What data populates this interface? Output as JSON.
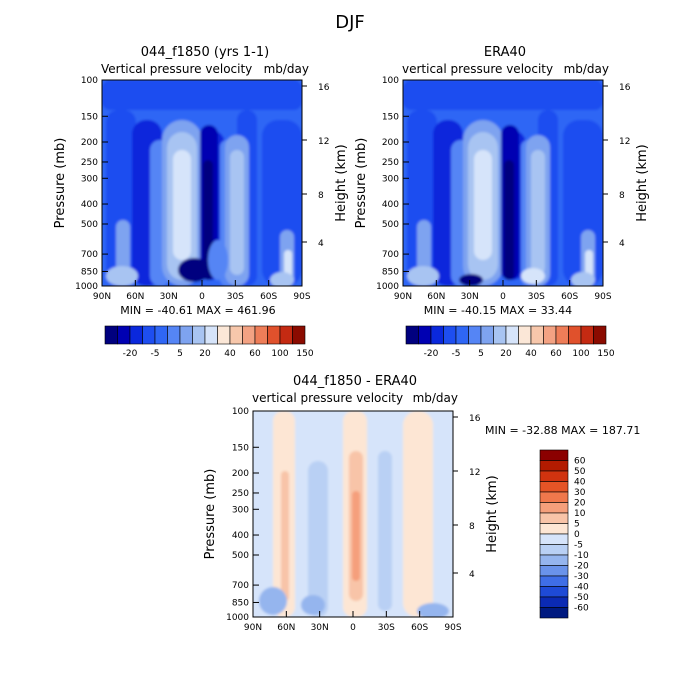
{
  "figure": {
    "title": "DJF"
  },
  "chart_data": [
    {
      "type": "heatmap",
      "title": "044_f1850 (yrs 1-1)",
      "subtitle_left": "Vertical pressure velocity",
      "subtitle_right": "mb/day",
      "ylabel": "Pressure (mb)",
      "ylabel_right": "Height (km)",
      "x_ticks": [
        "90N",
        "60N",
        "30N",
        "0",
        "30S",
        "60S",
        "90S"
      ],
      "y_ticks": [
        "100",
        "150",
        "200",
        "250",
        "300",
        "400",
        "500",
        "700",
        "850",
        "1000"
      ],
      "y_ticks_right": [
        "16",
        "12",
        "8",
        "4"
      ],
      "y_log_scale": true,
      "ylim": [
        1000,
        100
      ],
      "stats": "MIN = -40.61   MAX = 461.96",
      "colorbar": {
        "orientation": "horizontal",
        "labels": [
          "-20",
          "-5",
          "5",
          "20",
          "40",
          "60",
          "100",
          "150"
        ]
      }
    },
    {
      "type": "heatmap",
      "title": "ERA40",
      "subtitle_left": "vertical pressure velocity",
      "subtitle_right": "mb/day",
      "ylabel": "Pressure (mb)",
      "ylabel_right": "Height (km)",
      "x_ticks": [
        "90N",
        "60N",
        "30N",
        "0",
        "30S",
        "60S",
        "90S"
      ],
      "y_ticks": [
        "100",
        "150",
        "200",
        "250",
        "300",
        "400",
        "500",
        "700",
        "850",
        "1000"
      ],
      "y_ticks_right": [
        "16",
        "12",
        "8",
        "4"
      ],
      "y_log_scale": true,
      "ylim": [
        1000,
        100
      ],
      "stats": "MIN = -40.15   MAX = 33.44",
      "colorbar": {
        "orientation": "horizontal",
        "labels": [
          "-20",
          "-5",
          "5",
          "20",
          "40",
          "60",
          "100",
          "150"
        ]
      }
    },
    {
      "type": "heatmap",
      "title": "044_f1850 - ERA40",
      "subtitle_left": "vertical pressure velocity",
      "subtitle_right": "mb/day",
      "ylabel": "Pressure (mb)",
      "ylabel_right": "Height (km)",
      "x_ticks": [
        "90N",
        "60N",
        "30N",
        "0",
        "30S",
        "60S",
        "90S"
      ],
      "y_ticks": [
        "100",
        "150",
        "200",
        "250",
        "300",
        "400",
        "500",
        "700",
        "850",
        "1000"
      ],
      "y_ticks_right": [
        "16",
        "12",
        "8",
        "4"
      ],
      "y_log_scale": true,
      "ylim": [
        1000,
        100
      ],
      "stats": "MIN = -32.88   MAX = 187.71",
      "colorbar": {
        "orientation": "vertical",
        "labels": [
          "60",
          "50",
          "40",
          "30",
          "20",
          "10",
          "5",
          "0",
          "-5",
          "-10",
          "-20",
          "-30",
          "-40",
          "-50",
          "-60"
        ]
      }
    }
  ],
  "colors": {
    "abs_scale": [
      "#00007f",
      "#0000b2",
      "#0a28dc",
      "#1e4ef0",
      "#2f66f5",
      "#5585f5",
      "#7ea3f0",
      "#a8c4f2",
      "#d6e4fa",
      "#fbe7d7",
      "#f7c7ab",
      "#f3a283",
      "#ee7d58",
      "#e0512c",
      "#c42a12",
      "#8b0b00"
    ],
    "diff_scale": [
      "#8b0000",
      "#b31b00",
      "#d1330f",
      "#e55426",
      "#f0784c",
      "#f59f7b",
      "#f8c4a8",
      "#fde6d4",
      "#d6e4fa",
      "#b9d0f4",
      "#95b5ee",
      "#6a93ea",
      "#3f6ee6",
      "#1e4ad6",
      "#0b2ab4",
      "#001a80"
    ]
  }
}
